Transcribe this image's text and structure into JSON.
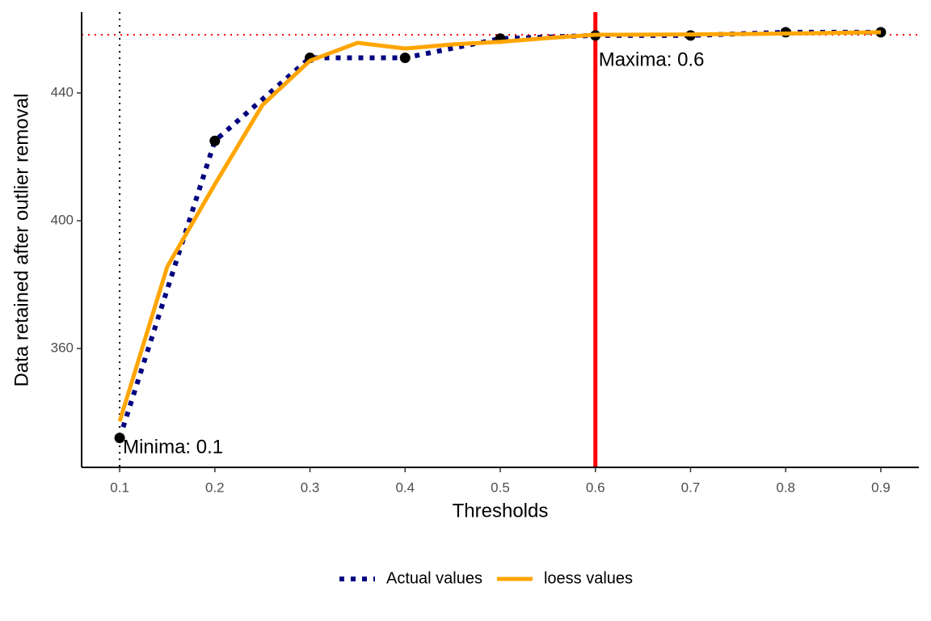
{
  "chart_data": {
    "type": "line",
    "xlabel": "Thresholds",
    "ylabel": "Data retained after outlier removal",
    "xlim": [
      0.06,
      0.94
    ],
    "ylim": [
      322.8,
      465.3
    ],
    "xticks": [
      0.1,
      0.2,
      0.3,
      0.4,
      0.5,
      0.6,
      0.7,
      0.8,
      0.9
    ],
    "yticks": [
      360,
      400,
      440
    ],
    "grid": false,
    "legend": "bottom",
    "series": [
      {
        "name": "Actual values",
        "color": "#000080",
        "style": "dotted",
        "markers": true,
        "x": [
          0.1,
          0.2,
          0.3,
          0.4,
          0.5,
          0.6,
          0.7,
          0.8,
          0.9
        ],
        "values": [
          332,
          425,
          451,
          451,
          457,
          458,
          458,
          459,
          459
        ]
      },
      {
        "name": "loess values",
        "color": "#FFA500",
        "style": "solid",
        "markers": false,
        "x": [
          0.1,
          0.15,
          0.2,
          0.25,
          0.3,
          0.35,
          0.4,
          0.45,
          0.5,
          0.55,
          0.6,
          0.7,
          0.8,
          0.9
        ],
        "values": [
          337.2,
          385.6,
          411.4,
          436.2,
          450.1,
          455.7,
          453.9,
          455.2,
          456,
          457.2,
          458.2,
          458.3,
          458.6,
          459
        ]
      }
    ],
    "reference_lines": [
      {
        "orientation": "vertical",
        "value": 0.1,
        "color": "#000000",
        "style": "dotted",
        "label": "Minima: 0.1"
      },
      {
        "orientation": "vertical",
        "value": 0.6,
        "color": "#FF0000",
        "style": "solid",
        "label": "Maxima: 0.6"
      },
      {
        "orientation": "horizontal",
        "value": 458.2,
        "color": "#FF0000",
        "style": "dotted"
      }
    ]
  }
}
